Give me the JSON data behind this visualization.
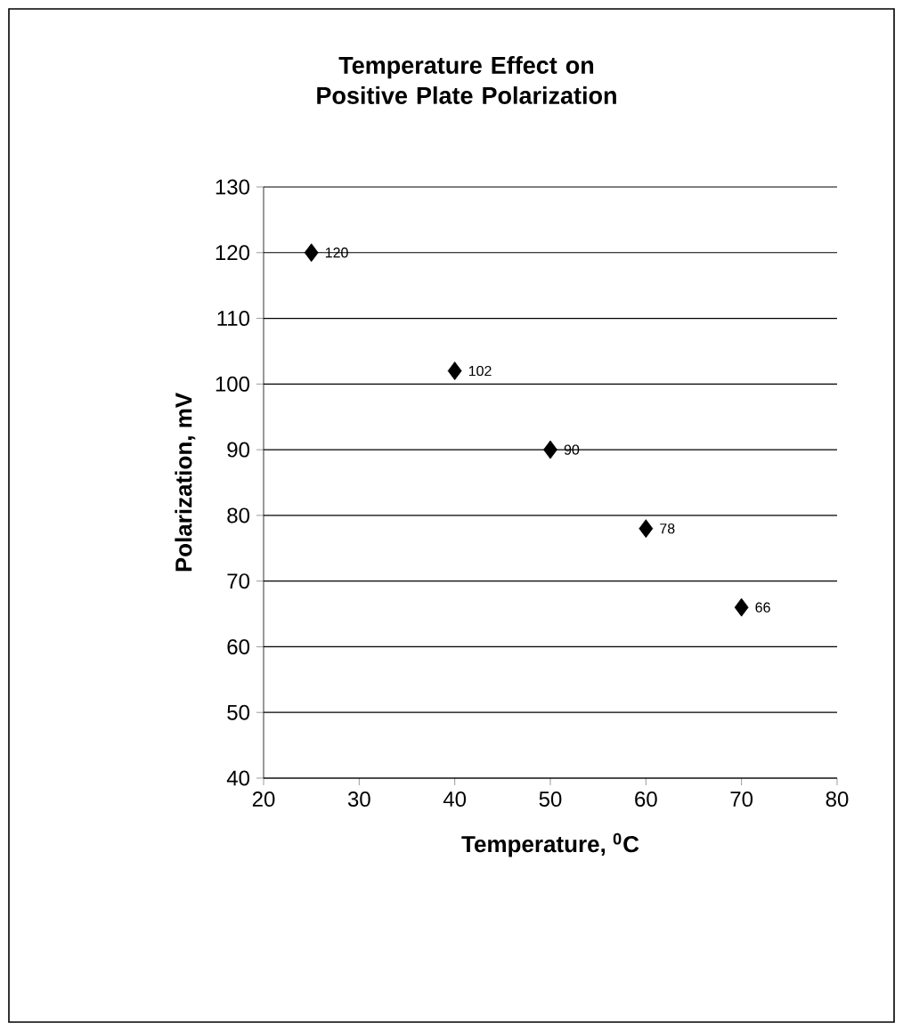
{
  "chart_data": {
    "type": "scatter",
    "title": "Temperature Effect on Positive Plate Polarization",
    "xlabel": "Temperature, $^{0}$C",
    "ylabel": "Polarization, mV",
    "x": [
      25,
      40,
      50,
      60,
      70
    ],
    "values": [
      120,
      102,
      90,
      78,
      66
    ],
    "color": "#000000",
    "marker": "diamond",
    "data_labels": true,
    "xlim": [
      20,
      80
    ],
    "ylim": [
      40,
      130
    ],
    "xticks": [
      20,
      30,
      40,
      50,
      60,
      70,
      80
    ],
    "yticks": [
      40,
      50,
      60,
      70,
      80,
      90,
      100,
      110,
      120,
      130
    ],
    "grid": "y"
  }
}
